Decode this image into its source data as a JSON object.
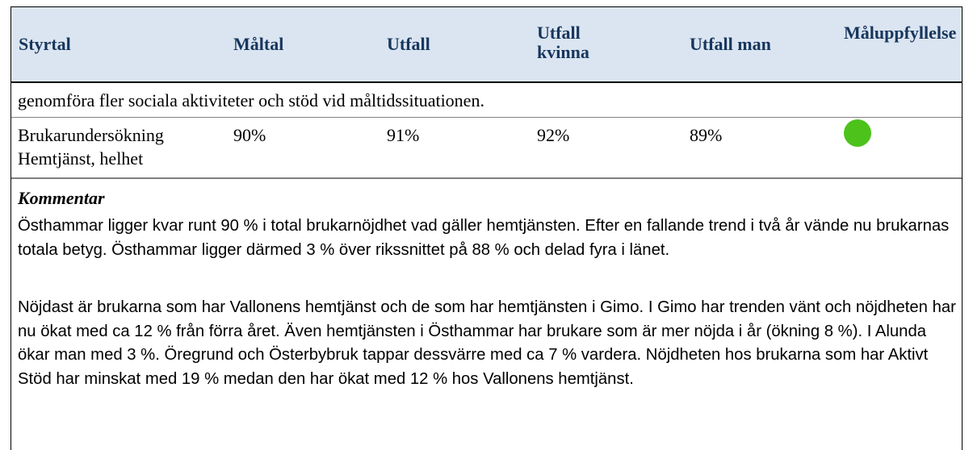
{
  "header": [
    "Styrtal",
    "Måltal",
    "Utfall",
    "Utfall kvinna",
    "Utfall man",
    "Måluppfyllelse"
  ],
  "continuation": "genomföra fler sociala aktiviteter och stöd vid måltidssituationen.",
  "row": [
    "Brukarundersökning Hemtjänst, helhet",
    "90%",
    "91%",
    "92%",
    "89%"
  ],
  "comment": {
    "title": "Kommentar",
    "paragraphs": [
      "Östhammar ligger kvar runt 90 % i total brukarnöjdhet vad gäller hemtjänsten. Efter en fallande trend i två år vände nu brukarnas totala betyg. Östhammar ligger därmed 3 % över rikssnittet på 88 % och delad fyra i länet.",
      "Nöjdast är brukarna som har Vallonens hemtjänst och de som har hemtjänsten i Gimo. I Gimo har trenden vänt och nöjdheten har nu ökat med ca 12 % från förra året. Även hemtjänsten i Östhammar har brukare som är mer nöjda i år (ökning 8 %). I Alunda ökar man med 3 %. Öregrund och Österbybruk tappar dessvärre med ca 7 % vardera. Nöjdheten hos brukarna som har Aktivt Stöd har minskat med 19 % medan den har ökat med 12 % hos Vallonens hemtjänst."
    ]
  }
}
